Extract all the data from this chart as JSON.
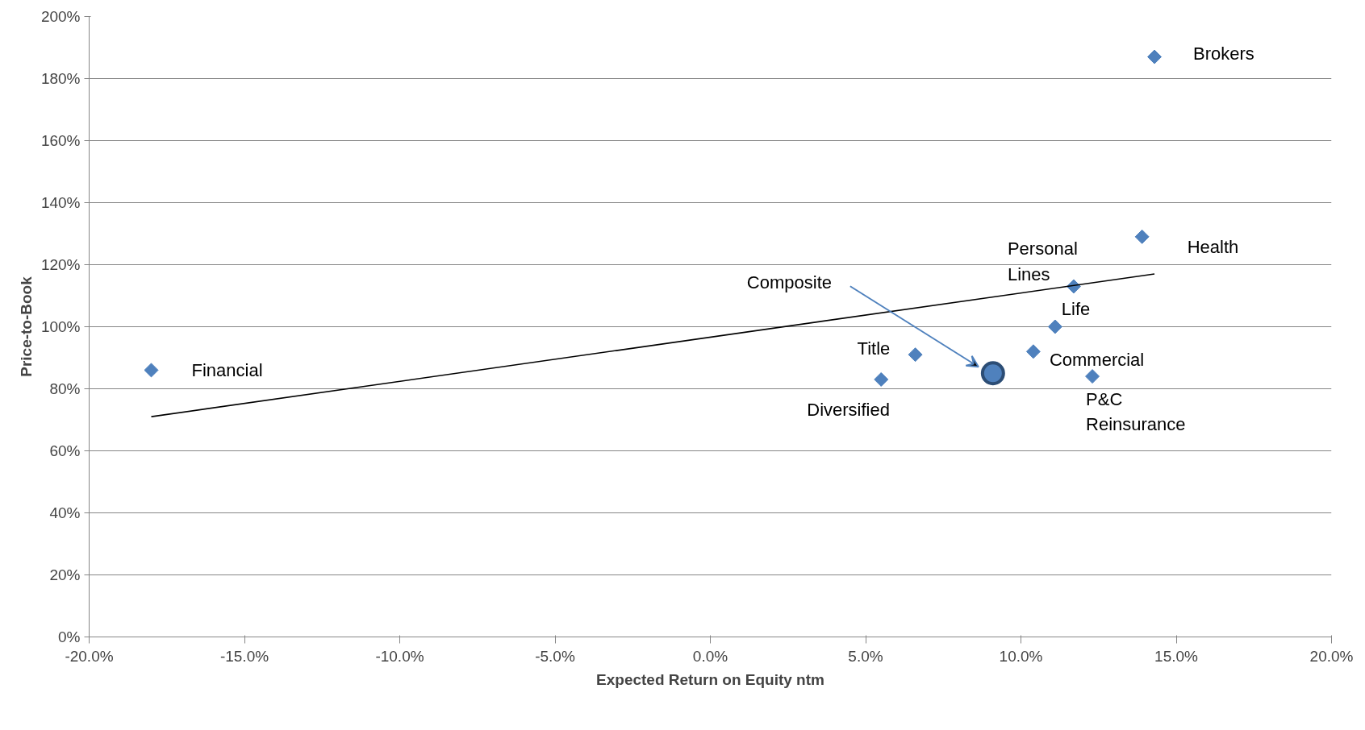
{
  "chart_data": {
    "type": "scatter",
    "xlabel": "Expected Return on Equity ntm",
    "ylabel": "Price-to-Book",
    "grid": "y",
    "xlim": [
      -20,
      20
    ],
    "ylim": [
      0,
      200
    ],
    "xticks": [
      {
        "value": -20,
        "label": "-20.0%"
      },
      {
        "value": -15,
        "label": "-15.0%"
      },
      {
        "value": -10,
        "label": "-10.0%"
      },
      {
        "value": -5,
        "label": "-5.0%"
      },
      {
        "value": 0,
        "label": "0.0%"
      },
      {
        "value": 5,
        "label": "5.0%"
      },
      {
        "value": 10,
        "label": "10.0%"
      },
      {
        "value": 15,
        "label": "15.0%"
      },
      {
        "value": 20,
        "label": "20.0%"
      }
    ],
    "yticks": [
      {
        "value": 0,
        "label": "0%"
      },
      {
        "value": 20,
        "label": "20%"
      },
      {
        "value": 40,
        "label": "40%"
      },
      {
        "value": 60,
        "label": "60%"
      },
      {
        "value": 80,
        "label": "80%"
      },
      {
        "value": 100,
        "label": "100%"
      },
      {
        "value": 120,
        "label": "120%"
      },
      {
        "value": 140,
        "label": "140%"
      },
      {
        "value": 160,
        "label": "160%"
      },
      {
        "value": 180,
        "label": "180%"
      },
      {
        "value": 200,
        "label": "200%"
      }
    ],
    "series": [
      {
        "marker": "diamond",
        "color": "#4f81bd",
        "x": [
          -18.0,
          14.3,
          13.9,
          11.7,
          11.1,
          10.4,
          12.3,
          6.6,
          5.5
        ],
        "values": [
          86,
          187,
          129,
          113,
          100,
          92,
          84,
          91,
          83
        ]
      },
      {
        "marker": "circle",
        "color": "#4f81bd",
        "x": [
          9.1
        ],
        "values": [
          85
        ]
      },
      {
        "type": "line",
        "color": "#000000",
        "x": [
          -18.0,
          14.3
        ],
        "values": [
          71,
          117
        ]
      }
    ],
    "annotations": [
      {
        "text": "Financial",
        "x": -18.0,
        "y": 86
      },
      {
        "text": "Brokers",
        "x": 14.3,
        "y": 187
      },
      {
        "text": "Health",
        "x": 13.9,
        "y": 129
      },
      {
        "text": "Personal\nLines",
        "x": 11.7,
        "y": 113
      },
      {
        "text": "Life",
        "x": 11.1,
        "y": 100
      },
      {
        "text": "Commercial",
        "x": 10.4,
        "y": 92
      },
      {
        "text": "P&C\nReinsurance",
        "x": 12.3,
        "y": 84
      },
      {
        "text": "Title",
        "x": 6.6,
        "y": 91
      },
      {
        "text": "Diversified",
        "x": 5.5,
        "y": 83
      },
      "Composite"
    ]
  }
}
